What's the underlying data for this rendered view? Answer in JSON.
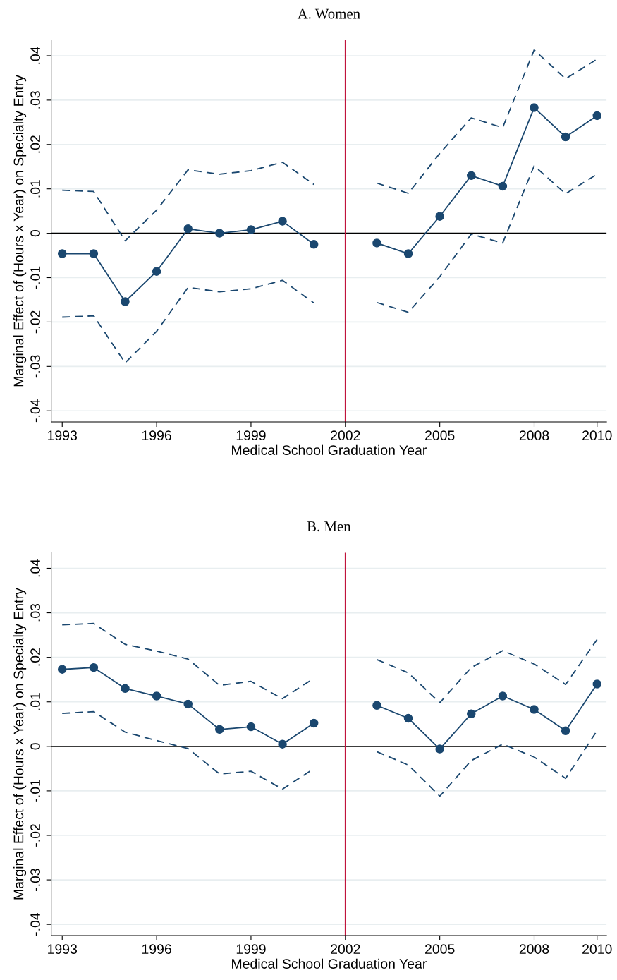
{
  "chart_data": [
    {
      "type": "line",
      "title": "A. Women",
      "xlabel": "Medical School Graduation Year",
      "ylabel": "Marginal Effect of (Hours x Year) on Specialty Entry",
      "x": [
        1993,
        1994,
        1995,
        1996,
        1997,
        1998,
        1999,
        2000,
        2001,
        2002,
        2003,
        2004,
        2005,
        2006,
        2007,
        2008,
        2009,
        2010
      ],
      "series": [
        {
          "color": "#1a476f",
          "marker": "circle",
          "line_style": "solid",
          "values": [
            -0.0046,
            -0.0046,
            -0.0154,
            -0.0086,
            0.001,
            0.0,
            0.0008,
            0.0027,
            -0.0025,
            null,
            -0.0022,
            -0.0046,
            0.0038,
            0.013,
            0.0106,
            0.0283,
            0.0217,
            0.0265
          ]
        },
        {
          "color": "#1a476f",
          "marker": "none",
          "line_style": "dashed",
          "values": [
            0.0097,
            0.0094,
            -0.0017,
            0.0052,
            0.0143,
            0.0133,
            0.0141,
            0.016,
            0.011,
            null,
            0.0113,
            0.009,
            0.018,
            0.026,
            0.0238,
            0.0413,
            0.0348,
            0.0392
          ]
        },
        {
          "color": "#1a476f",
          "marker": "none",
          "line_style": "dashed",
          "values": [
            -0.0189,
            -0.0186,
            -0.0292,
            -0.0221,
            -0.0122,
            -0.0132,
            -0.0125,
            -0.0106,
            -0.0157,
            null,
            -0.0156,
            -0.0178,
            -0.0098,
            -0.0002,
            -0.0022,
            0.0152,
            0.0089,
            0.0133
          ]
        }
      ],
      "xlim": [
        1992.65,
        2010.3
      ],
      "xticks": [
        1993,
        1996,
        1999,
        2002,
        2005,
        2008,
        2010
      ],
      "ylim": [
        -0.0425,
        0.0435
      ],
      "yticks": [
        {
          "value": -0.04,
          "label": "-.04"
        },
        {
          "value": -0.03,
          "label": "-.03"
        },
        {
          "value": -0.02,
          "label": "-.02"
        },
        {
          "value": -0.01,
          "label": "-.01"
        },
        {
          "value": 0,
          "label": "0"
        },
        {
          "value": 0.01,
          "label": ".01"
        },
        {
          "value": 0.02,
          "label": ".02"
        },
        {
          "value": 0.03,
          "label": ".03"
        },
        {
          "value": 0.04,
          "label": ".04"
        }
      ],
      "grid": "y",
      "ref_lines": [
        {
          "axis": "y",
          "value": 0,
          "color": "#000000"
        },
        {
          "axis": "x",
          "value": 2002,
          "color": "#c0143c"
        }
      ]
    },
    {
      "type": "line",
      "title": "B. Men",
      "xlabel": "Medical School Graduation Year",
      "ylabel": "Marginal Effect of (Hours x Year) on Specialty Entry",
      "x": [
        1993,
        1994,
        1995,
        1996,
        1997,
        1998,
        1999,
        2000,
        2001,
        2002,
        2003,
        2004,
        2005,
        2006,
        2007,
        2008,
        2009,
        2010
      ],
      "series": [
        {
          "color": "#1a476f",
          "marker": "circle",
          "line_style": "solid",
          "values": [
            0.0173,
            0.0177,
            0.013,
            0.0113,
            0.0095,
            0.0038,
            0.0044,
            0.0005,
            0.0052,
            null,
            0.0092,
            0.0063,
            -0.0006,
            0.0073,
            0.0113,
            0.0083,
            0.0035,
            0.014
          ]
        },
        {
          "color": "#1a476f",
          "marker": "none",
          "line_style": "dashed",
          "values": [
            0.0273,
            0.0276,
            0.0229,
            0.0214,
            0.0196,
            0.0137,
            0.0146,
            0.0107,
            0.0153,
            null,
            0.0195,
            0.0165,
            0.0098,
            0.0177,
            0.0215,
            0.0185,
            0.0139,
            0.024
          ]
        },
        {
          "color": "#1a476f",
          "marker": "none",
          "line_style": "dashed",
          "values": [
            0.0074,
            0.0078,
            0.0032,
            0.0013,
            -0.0005,
            -0.0062,
            -0.0056,
            -0.0096,
            -0.005,
            null,
            -0.0012,
            -0.0042,
            -0.0112,
            -0.0032,
            0.0005,
            -0.0024,
            -0.0072,
            0.0035
          ]
        }
      ],
      "xlim": [
        1992.65,
        2010.3
      ],
      "xticks": [
        1993,
        1996,
        1999,
        2002,
        2005,
        2008,
        2010
      ],
      "ylim": [
        -0.0425,
        0.0435
      ],
      "yticks": [
        {
          "value": -0.04,
          "label": "-.04"
        },
        {
          "value": -0.03,
          "label": "-.03"
        },
        {
          "value": -0.02,
          "label": "-.02"
        },
        {
          "value": -0.01,
          "label": "-.01"
        },
        {
          "value": 0,
          "label": "0"
        },
        {
          "value": 0.01,
          "label": ".01"
        },
        {
          "value": 0.02,
          "label": ".02"
        },
        {
          "value": 0.03,
          "label": ".03"
        },
        {
          "value": 0.04,
          "label": ".04"
        }
      ],
      "grid": "y",
      "ref_lines": [
        {
          "axis": "y",
          "value": 0,
          "color": "#000000"
        },
        {
          "axis": "x",
          "value": 2002,
          "color": "#c0143c"
        }
      ]
    }
  ]
}
